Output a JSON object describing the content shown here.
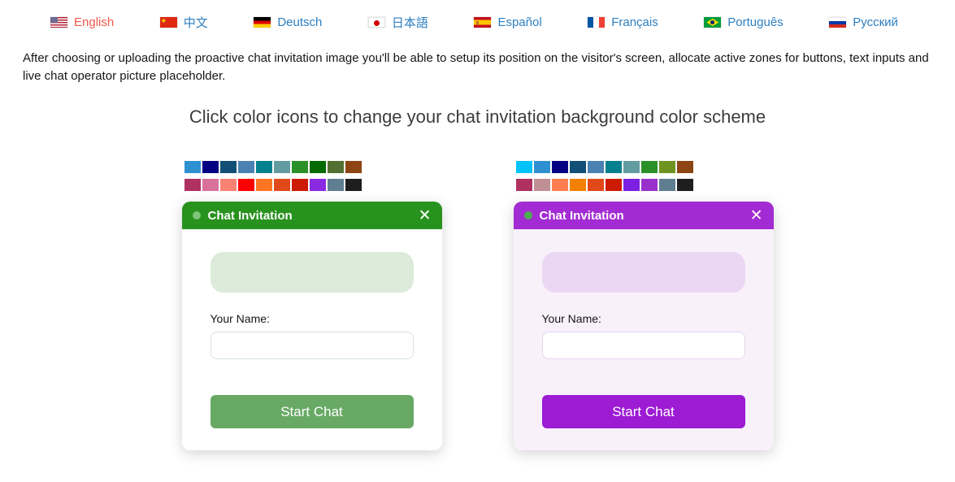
{
  "languages": {
    "link_color": "#2d7fc1",
    "active_color": "#f0584a",
    "items": [
      {
        "label": "English",
        "flag": "us",
        "active": true
      },
      {
        "label": "中文",
        "flag": "cn",
        "active": false
      },
      {
        "label": "Deutsch",
        "flag": "de",
        "active": false
      },
      {
        "label": "日本語",
        "flag": "jp",
        "active": false
      },
      {
        "label": "Español",
        "flag": "es",
        "active": false
      },
      {
        "label": "Français",
        "flag": "fr",
        "active": false
      },
      {
        "label": "Português",
        "flag": "br",
        "active": false
      },
      {
        "label": "Русский",
        "flag": "ru",
        "active": false
      }
    ]
  },
  "description": "After choosing or uploading the proactive chat invitation image you'll be able to setup its position on the visitor's screen, allocate active zones for buttons, text inputs and live chat operator picture placeholder.",
  "heading": "Click color icons to change your chat invitation background color scheme",
  "widgets": {
    "green": {
      "title": "Chat Invitation",
      "close_icon": "✕",
      "name_label": "Your Name:",
      "input_value": "",
      "input_placeholder": "",
      "button_label": "Start Chat",
      "colors": {
        "header": "#28921e",
        "dot": "#7cc57a",
        "card": "#ffffff",
        "placeholder": "#dcebda",
        "inputBorder": "#d6e5d4",
        "button": "#68a966"
      },
      "palette": [
        "#2e90d1",
        "#020183",
        "#114f76",
        "#4a82b4",
        "#03818f",
        "#639ca0",
        "#2a9128",
        "#026a02",
        "#537030",
        "#8c4513",
        "#af3160",
        "#d9729a",
        "#f98275",
        "#fe0000",
        "#fd7523",
        "#e2491a",
        "#cd1b02",
        "#8a2be2",
        "#5f7e91",
        "#1e1e1e"
      ]
    },
    "purple": {
      "title": "Chat Invitation",
      "close_icon": "✕",
      "name_label": "Your Name:",
      "input_value": "",
      "input_placeholder": "",
      "button_label": "Start Chat",
      "colors": {
        "header": "#a32bd3",
        "dot": "#4cb04e",
        "card": "#f8f1fa",
        "placeholder": "#ebd7f3",
        "inputBorder": "#e6d4ef",
        "button": "#9c1bd3"
      },
      "palette": [
        "#00c3fc",
        "#2e90d1",
        "#020183",
        "#114f76",
        "#4a82b4",
        "#03818f",
        "#639ca0",
        "#2a9128",
        "#6f9321",
        "#8c4513",
        "#af3160",
        "#c08f93",
        "#ff7e50",
        "#f28002",
        "#e2491a",
        "#cd1b02",
        "#7b1fe0",
        "#9932cc",
        "#5f7e91",
        "#1e1e1e"
      ]
    }
  }
}
